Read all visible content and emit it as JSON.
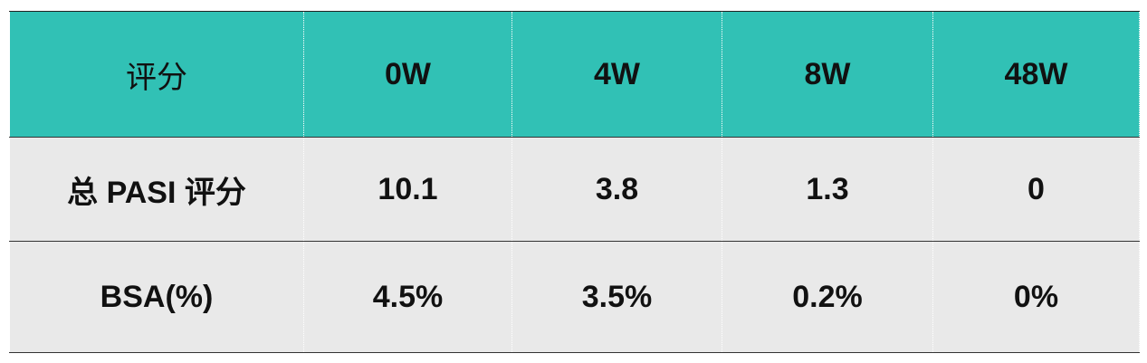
{
  "table": {
    "header": [
      "评分",
      "0W",
      "4W",
      "8W",
      "48W"
    ],
    "rows": [
      [
        "总 PASI 评分",
        "10.1",
        "3.8",
        "1.3",
        "0"
      ],
      [
        "BSA(%)",
        "4.5%",
        "3.5%",
        "0.2%",
        "0%"
      ]
    ]
  }
}
